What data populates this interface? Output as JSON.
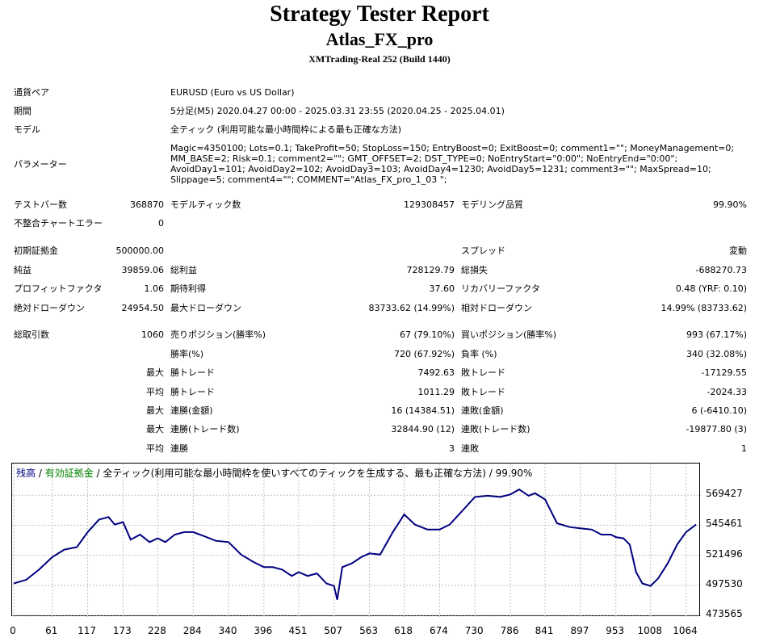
{
  "report": {
    "title": "Strategy Tester Report",
    "ea_name": "Atlas_FX_pro",
    "server": "XMTrading-Real 252 (Build 1440)"
  },
  "info": {
    "symbol_label": "通貨ペア",
    "symbol_value": "EURUSD (Euro vs US Dollar)",
    "period_label": "期間",
    "period_value": "5分足(M5) 2020.04.27 00:00 - 2025.03.31 23:55 (2020.04.25 - 2025.04.01)",
    "model_label": "モデル",
    "model_value": "全ティック (利用可能な最小時間枠による最も正確な方法)",
    "params_label": "パラメーター",
    "params_value": "Magic=4350100; Lots=0.1; TakeProfit=50; StopLoss=150; EntryBoost=0; ExitBoost=0; comment1=\"\"; MoneyManagement=0; MM_BASE=2; Risk=0.1; comment2=\"\"; GMT_OFFSET=2; DST_TYPE=0; NoEntryStart=\"0:00\"; NoEntryEnd=\"0:00\"; AvoidDay1=101; AvoidDay2=102; AvoidDay3=103; AvoidDay4=1230; AvoidDay5=1231; comment3=\"\"; MaxSpread=10; Slippage=5; comment4=\"\"; COMMENT=\"Atlas_FX_pro_1_03 \";"
  },
  "bars": {
    "bars_label": "テストバー数",
    "bars_value": "368870",
    "ticks_label": "モデルティック数",
    "ticks_value": "129308457",
    "quality_label": "モデリング品質",
    "quality_value": "99.90%",
    "mismatch_label": "不整合チャートエラー",
    "mismatch_value": "0"
  },
  "stats": {
    "deposit_label": "初期証拠金",
    "deposit_value": "500000.00",
    "spread_label": "スプレッド",
    "spread_value": "変動",
    "net_label": "純益",
    "net_value": "39859.06",
    "gross_profit_label": "総利益",
    "gross_profit_value": "728129.79",
    "gross_loss_label": "総損失",
    "gross_loss_value": "-688270.73",
    "pf_label": "プロフィットファクタ",
    "pf_value": "1.06",
    "expected_label": "期待利得",
    "expected_value": "37.60",
    "recovery_label": "リカバリーファクタ",
    "recovery_value": "0.48 (YRF: 0.10)",
    "abs_dd_label": "絶対ドローダウン",
    "abs_dd_value": "24954.50",
    "max_dd_label": "最大ドローダウン",
    "max_dd_value": "83733.62 (14.99%)",
    "rel_dd_label": "相対ドローダウン",
    "rel_dd_value": "14.99% (83733.62)"
  },
  "trades": {
    "total_label": "総取引数",
    "total_value": "1060",
    "short_label": "売りポジション(勝率%)",
    "short_value": "67 (79.10%)",
    "long_label": "買いポジション(勝率%)",
    "long_value": "993 (67.17%)",
    "win_rate_label": "勝率(%)",
    "win_rate_value": "720 (67.92%)",
    "loss_rate_label": "負率 (%)",
    "loss_rate_value": "340 (32.08%)",
    "max_label": "最大",
    "avg_label": "平均",
    "win_trade_label": "勝トレード",
    "loss_trade_label": "敗トレード",
    "largest_win": "7492.63",
    "largest_loss": "-17129.55",
    "avg_win": "1011.29",
    "avg_loss": "-2024.33",
    "cons_win_money_label": "連勝(金額)",
    "cons_win_money_value": "16 (14384.51)",
    "cons_loss_money_label": "連敗(金額)",
    "cons_loss_money_value": "6 (-6410.10)",
    "cons_win_trades_label": "連勝(トレード数)",
    "cons_win_trades_value": "32844.90 (12)",
    "cons_loss_trades_label": "連敗(トレード数)",
    "cons_loss_trades_value": "-19877.80 (3)",
    "avg_cons_win_label": "連勝",
    "avg_cons_win_value": "3",
    "avg_cons_loss_label": "連敗",
    "avg_cons_loss_value": "1"
  },
  "chart_data": {
    "type": "line",
    "legend": {
      "balance": "残高",
      "sep1": " / ",
      "equity": "有効証拠金",
      "rest": " / 全ティック(利用可能な最小時間枠を使いすべてのティックを生成する、最も正確な方法) / 99.90%"
    },
    "colors": {
      "balance": "#000080",
      "equity": "#008000",
      "grid": "#c0c0c0"
    },
    "ylim": [
      473565,
      593393
    ],
    "y_ticks": [
      "569427",
      "545461",
      "521496",
      "497530",
      "473565"
    ],
    "x_ticks": [
      "0",
      "61",
      "117",
      "173",
      "228",
      "284",
      "340",
      "396",
      "451",
      "507",
      "563",
      "618",
      "674",
      "730",
      "786",
      "841",
      "897",
      "953",
      "1008",
      "1064"
    ],
    "xlim": [
      0,
      1085
    ],
    "series": [
      {
        "x": [
          0,
          20,
          40,
          61,
          80,
          100,
          117,
          135,
          150,
          160,
          173,
          185,
          200,
          215,
          228,
          240,
          255,
          270,
          284,
          300,
          320,
          340,
          360,
          380,
          396,
          410,
          425,
          440,
          451,
          465,
          480,
          495,
          507,
          512,
          520,
          535,
          550,
          563,
          580,
          600,
          618,
          635,
          655,
          674,
          690,
          710,
          730,
          750,
          770,
          786,
          800,
          815,
          825,
          841,
          860,
          880,
          897,
          915,
          930,
          945,
          953,
          965,
          975,
          985,
          995,
          1008,
          1020,
          1035,
          1050,
          1064,
          1080
        ],
        "values": [
          499000,
          502000,
          510000,
          520000,
          526000,
          528000,
          540000,
          550000,
          552000,
          546000,
          548000,
          534000,
          538000,
          532000,
          535000,
          532000,
          538000,
          540000,
          540000,
          537000,
          533000,
          532000,
          522000,
          516000,
          512000,
          512000,
          510000,
          505000,
          508000,
          505000,
          507000,
          499000,
          497000,
          486000,
          512000,
          515000,
          520000,
          523000,
          522000,
          540000,
          554000,
          546000,
          542000,
          542000,
          546000,
          557000,
          568000,
          569000,
          568000,
          570000,
          574000,
          569000,
          571000,
          566000,
          547000,
          544000,
          543000,
          542000,
          538000,
          538000,
          536000,
          535000,
          530000,
          508000,
          499000,
          497000,
          503000,
          515000,
          530000,
          540000,
          546000
        ]
      }
    ]
  }
}
